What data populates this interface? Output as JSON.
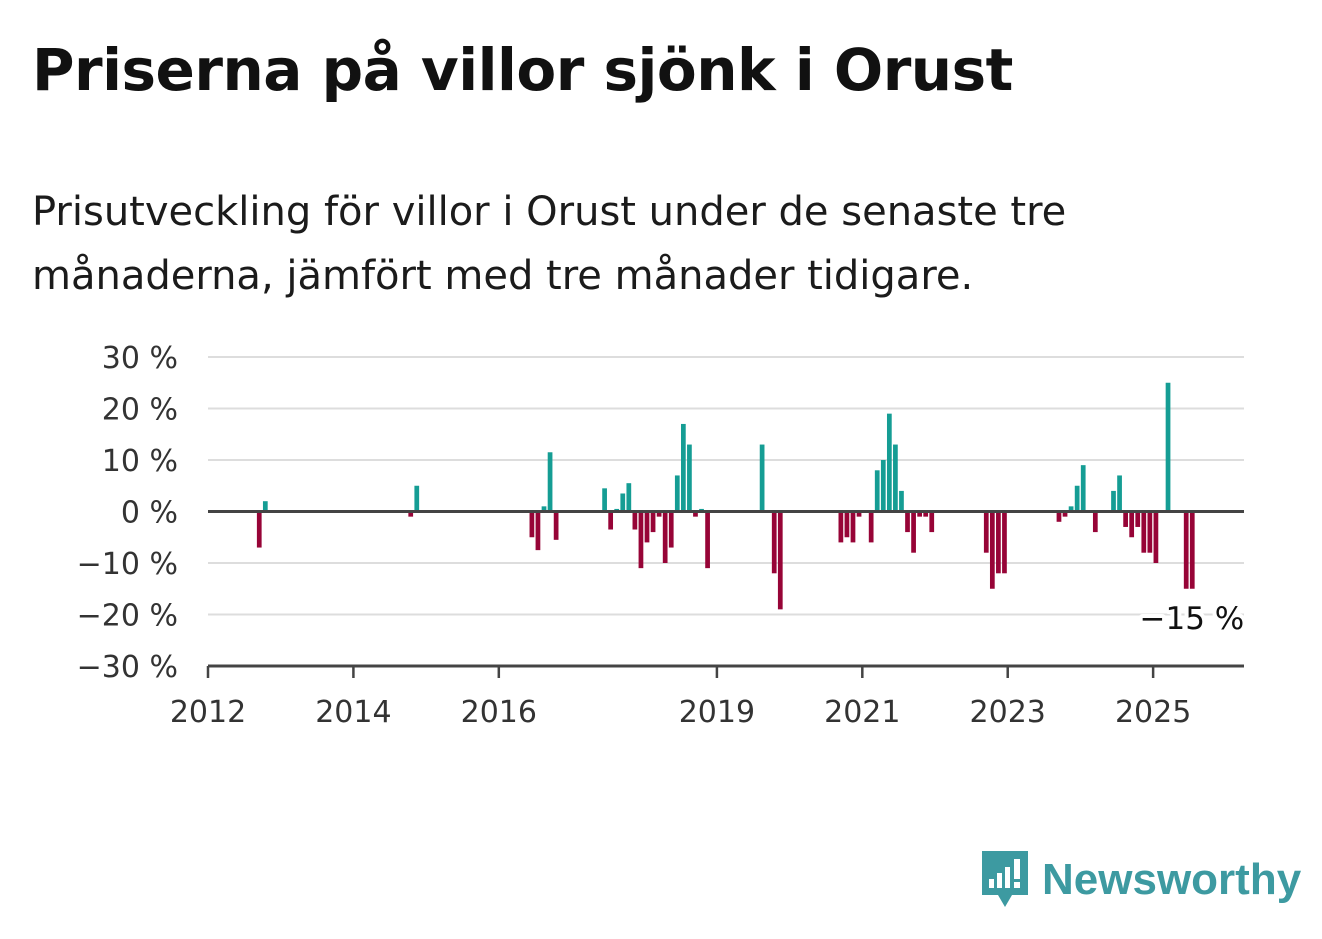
{
  "header": {
    "title": "Priserna på villor sjönk i Orust",
    "subtitle": "Prisutveckling för villor i Orust under de senaste tre månaderna, jämfört med tre månader tidigare."
  },
  "brand": {
    "name": "Newsworthy",
    "icon": "newsworthy-logo-icon",
    "color": "#3d9aa1"
  },
  "chart_data": {
    "type": "bar",
    "title": "Priserna på villor sjönk i Orust",
    "subtitle": "Prisutveckling för villor i Orust under de senaste tre månaderna, jämfört med tre månader tidigare.",
    "xlabel": "",
    "ylabel": "",
    "x_axis": {
      "type": "date",
      "range": [
        "2012-01-01",
        "2026-04-01"
      ],
      "ticks": [
        "2012",
        "2014",
        "2016",
        "2019",
        "2021",
        "2023",
        "2025"
      ]
    },
    "y_axis": {
      "range": [
        -30,
        30
      ],
      "ticks": [
        {
          "value": 30,
          "label": "30 %"
        },
        {
          "value": 20,
          "label": "20 %"
        },
        {
          "value": 10,
          "label": "10 %"
        },
        {
          "value": 0,
          "label": "0 %"
        },
        {
          "value": -10,
          "label": "−10 %"
        },
        {
          "value": -20,
          "label": "−20 %"
        },
        {
          "value": -30,
          "label": "−30 %"
        }
      ]
    },
    "grid": true,
    "legend": "none",
    "colors": {
      "positive": "#159d94",
      "negative": "#970437",
      "grid": "#dddddd",
      "axis": "#444444"
    },
    "unit": "%",
    "series": [
      {
        "values": [
          {
            "x": "2012-09",
            "y": -7
          },
          {
            "x": "2012-10",
            "y": 2
          },
          {
            "x": "2014-10",
            "y": -1
          },
          {
            "x": "2014-11",
            "y": 5
          },
          {
            "x": "2016-06",
            "y": -5
          },
          {
            "x": "2016-07",
            "y": -7.5
          },
          {
            "x": "2016-08",
            "y": 1
          },
          {
            "x": "2016-09",
            "y": 11.5
          },
          {
            "x": "2016-10",
            "y": -5.5
          },
          {
            "x": "2017-06",
            "y": 4.5
          },
          {
            "x": "2017-07",
            "y": -3.5
          },
          {
            "x": "2017-08",
            "y": 0.5
          },
          {
            "x": "2017-09",
            "y": 3.5
          },
          {
            "x": "2017-10",
            "y": 5.5
          },
          {
            "x": "2017-11",
            "y": -3.5
          },
          {
            "x": "2017-12",
            "y": -11
          },
          {
            "x": "2018-01",
            "y": -6
          },
          {
            "x": "2018-02",
            "y": -4
          },
          {
            "x": "2018-03",
            "y": -1
          },
          {
            "x": "2018-04",
            "y": -10
          },
          {
            "x": "2018-05",
            "y": -7
          },
          {
            "x": "2018-06",
            "y": 7
          },
          {
            "x": "2018-07",
            "y": 17
          },
          {
            "x": "2018-08",
            "y": 13
          },
          {
            "x": "2018-09",
            "y": -1
          },
          {
            "x": "2018-10",
            "y": 0.5
          },
          {
            "x": "2018-11",
            "y": -11
          },
          {
            "x": "2019-08",
            "y": 13
          },
          {
            "x": "2019-10",
            "y": -12
          },
          {
            "x": "2019-11",
            "y": -19
          },
          {
            "x": "2020-09",
            "y": -6
          },
          {
            "x": "2020-10",
            "y": -5
          },
          {
            "x": "2020-11",
            "y": -6
          },
          {
            "x": "2020-12",
            "y": -1
          },
          {
            "x": "2021-02",
            "y": -6
          },
          {
            "x": "2021-03",
            "y": 8
          },
          {
            "x": "2021-04",
            "y": 10
          },
          {
            "x": "2021-05",
            "y": 19
          },
          {
            "x": "2021-06",
            "y": 13
          },
          {
            "x": "2021-07",
            "y": 4
          },
          {
            "x": "2021-08",
            "y": -4
          },
          {
            "x": "2021-09",
            "y": -8
          },
          {
            "x": "2021-10",
            "y": -1
          },
          {
            "x": "2021-11",
            "y": -1
          },
          {
            "x": "2021-12",
            "y": -4
          },
          {
            "x": "2022-09",
            "y": -8
          },
          {
            "x": "2022-10",
            "y": -15
          },
          {
            "x": "2022-11",
            "y": -12
          },
          {
            "x": "2022-12",
            "y": -12
          },
          {
            "x": "2023-09",
            "y": -2
          },
          {
            "x": "2023-10",
            "y": -1
          },
          {
            "x": "2023-11",
            "y": 1
          },
          {
            "x": "2023-12",
            "y": 5
          },
          {
            "x": "2024-01",
            "y": 9
          },
          {
            "x": "2024-03",
            "y": -4
          },
          {
            "x": "2024-06",
            "y": 4
          },
          {
            "x": "2024-07",
            "y": 7
          },
          {
            "x": "2024-08",
            "y": -3
          },
          {
            "x": "2024-09",
            "y": -5
          },
          {
            "x": "2024-10",
            "y": -3
          },
          {
            "x": "2024-11",
            "y": -8
          },
          {
            "x": "2024-12",
            "y": -8
          },
          {
            "x": "2025-01",
            "y": -10
          },
          {
            "x": "2025-03",
            "y": 25
          },
          {
            "x": "2025-06",
            "y": -15
          },
          {
            "x": "2025-07",
            "y": -15
          }
        ]
      }
    ],
    "annotations": [
      {
        "x": "2025-07",
        "y": -15,
        "text": "−15 %"
      }
    ]
  }
}
